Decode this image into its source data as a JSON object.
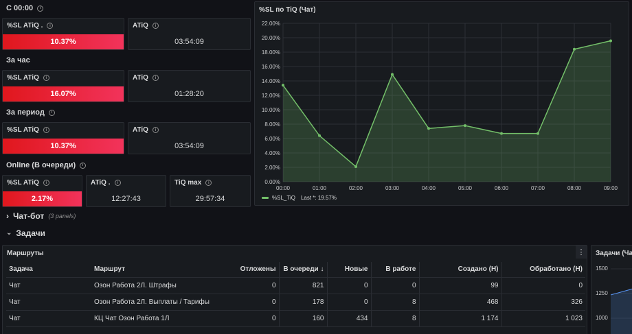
{
  "rows": {
    "c0000": "С 00:00",
    "hour": "За час",
    "period": "За период",
    "online": "Online (В очереди)"
  },
  "stats": {
    "r1_sl_title": "%SL ATiQ .",
    "r1_sl_value": "10.37%",
    "r1_atiq_title": "ATiQ",
    "r1_atiq_value": "03:54:09",
    "r2_sl_title": "%SL ATiQ",
    "r2_sl_value": "16.07%",
    "r2_atiq_title": "ATiQ",
    "r2_atiq_value": "01:28:20",
    "r3_sl_title": "%SL ATiQ",
    "r3_sl_value": "10.37%",
    "r3_atiq_title": "ATiQ",
    "r3_atiq_value": "03:54:09",
    "r4_sl_title": "%SL ATiQ",
    "r4_sl_value": "2.17%",
    "r4_atiq_title": "ATiQ .",
    "r4_atiq_value": "12:27:43",
    "r4_tiq_title": "TiQ max",
    "r4_tiq_value": "29:57:34"
  },
  "chart_panel": {
    "title": "%SL по TiQ (Чат)",
    "legend_name": "%SL_TiQ",
    "legend_last": "Last *: 19.57%"
  },
  "chart_data": {
    "type": "area",
    "x": [
      "00:00",
      "01:00",
      "02:00",
      "03:00",
      "04:00",
      "05:00",
      "06:00",
      "07:00",
      "08:00",
      "09:00"
    ],
    "series": [
      {
        "name": "%SL_TiQ",
        "values": [
          13.4,
          6.4,
          2.1,
          14.9,
          7.4,
          7.8,
          6.7,
          6.7,
          18.4,
          19.57
        ]
      }
    ],
    "y_ticks": [
      "0.00%",
      "2.00%",
      "4.00%",
      "6.00%",
      "8.00%",
      "10.00%",
      "12.00%",
      "14.00%",
      "16.00%",
      "18.00%",
      "20.00%",
      "22.00%"
    ],
    "ylim": [
      0,
      22
    ],
    "grid": true,
    "legend": "bottom-left",
    "color": "#73bf69"
  },
  "sections": {
    "chatbot": "Чат-бот",
    "chatbot_sub": "(3 panels)",
    "tasks": "Задачи"
  },
  "routes": {
    "title": "Маршруты",
    "columns": [
      "Задача",
      "Маршрут",
      "Отложены",
      "В очереди",
      "Новые",
      "В работе",
      "Создано (Н)",
      "Обработано (Н)"
    ],
    "rows": [
      [
        "Чат",
        "Озон Работа 2Л. Штрафы",
        "0",
        "821",
        "0",
        "0",
        "99",
        "0"
      ],
      [
        "Чат",
        "Озон Работа 2Л. Выплаты / Тарифы",
        "0",
        "178",
        "0",
        "8",
        "468",
        "326"
      ],
      [
        "Чат",
        "КЦ Чат Озон Работа 1Л",
        "0",
        "160",
        "434",
        "8",
        "1 174",
        "1 023"
      ]
    ]
  },
  "right_panel": {
    "title": "Задачи (Чат)",
    "y_ticks": [
      "1500",
      "1250",
      "1000"
    ]
  },
  "icons": {
    "info": "i",
    "menu": "⋮",
    "chevron_right": "›",
    "chevron_down": "⌄",
    "sort_down": "↓"
  }
}
